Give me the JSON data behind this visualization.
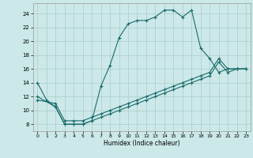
{
  "title": "",
  "xlabel": "Humidex (Indice chaleur)",
  "bg_color": "#cce8e8",
  "line_color": "#1a6b6b",
  "grid_color": "#aacccc",
  "xlim": [
    -0.5,
    23.5
  ],
  "ylim": [
    7,
    25.5
  ],
  "yticks": [
    8,
    10,
    12,
    14,
    16,
    18,
    20,
    22,
    24
  ],
  "xticks": [
    0,
    1,
    2,
    3,
    4,
    5,
    6,
    7,
    8,
    9,
    10,
    11,
    12,
    13,
    14,
    15,
    16,
    17,
    18,
    19,
    20,
    21,
    22,
    23
  ],
  "curve1_x": [
    0,
    1,
    2,
    3,
    4,
    5,
    6,
    7,
    8,
    9,
    10,
    11,
    12,
    13,
    14,
    15,
    16,
    17,
    18,
    19,
    20,
    21,
    22,
    23
  ],
  "curve1_y": [
    14,
    11.5,
    10.5,
    8,
    8,
    8,
    8.5,
    13.5,
    16.5,
    20.5,
    22.5,
    23,
    23,
    23.5,
    24.5,
    24.5,
    23.5,
    24.5,
    19,
    17.5,
    15.5,
    16,
    16,
    16
  ],
  "curve2_x": [
    0,
    2,
    3,
    4,
    5,
    6,
    7,
    8,
    9,
    10,
    11,
    12,
    13,
    14,
    15,
    16,
    17,
    18,
    19,
    20,
    21,
    22,
    23
  ],
  "curve2_y": [
    12,
    10.5,
    8.0,
    8.0,
    8.0,
    8.5,
    9.0,
    9.5,
    10.0,
    10.5,
    11.0,
    11.5,
    12.0,
    12.5,
    13.0,
    13.5,
    14.0,
    14.5,
    15.0,
    17.0,
    15.5,
    16.0,
    16.0
  ],
  "curve3_x": [
    0,
    2,
    3,
    4,
    5,
    6,
    7,
    8,
    9,
    10,
    11,
    12,
    13,
    14,
    15,
    16,
    17,
    18,
    19,
    20,
    21,
    22,
    23
  ],
  "curve3_y": [
    11.5,
    11.0,
    8.5,
    8.5,
    8.5,
    9.0,
    9.5,
    10.0,
    10.5,
    11.0,
    11.5,
    12.0,
    12.5,
    13.0,
    13.5,
    14.0,
    14.5,
    15.0,
    15.5,
    17.5,
    16.0,
    16.0,
    16.0
  ]
}
